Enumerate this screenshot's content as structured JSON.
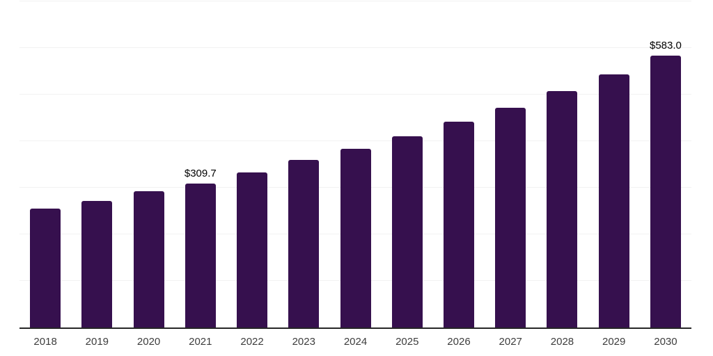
{
  "chart_data": {
    "type": "bar",
    "title": "",
    "xlabel": "",
    "ylabel": "",
    "categories": [
      "2018",
      "2019",
      "2020",
      "2021",
      "2022",
      "2023",
      "2024",
      "2025",
      "2026",
      "2027",
      "2028",
      "2029",
      "2030"
    ],
    "values": [
      255,
      271,
      292,
      309.7,
      333,
      359,
      384,
      411,
      442,
      472,
      507,
      543,
      583
    ],
    "bar_labels": [
      "",
      "",
      "",
      "$309.7",
      "",
      "",
      "",
      "",
      "",
      "",
      "",
      "",
      "$583.0"
    ],
    "ylim": [
      0,
      700
    ],
    "gridline_step": 100,
    "grid": "horizontal",
    "y_tick_labels_visible": false,
    "legend_position": "none",
    "colors": {
      "bar": "#36104e",
      "axis": "#262626",
      "gridline": "#f2f2f2",
      "tick_label": "#3d3d3d",
      "value_label": "#000000",
      "background": "#ffffff"
    }
  }
}
